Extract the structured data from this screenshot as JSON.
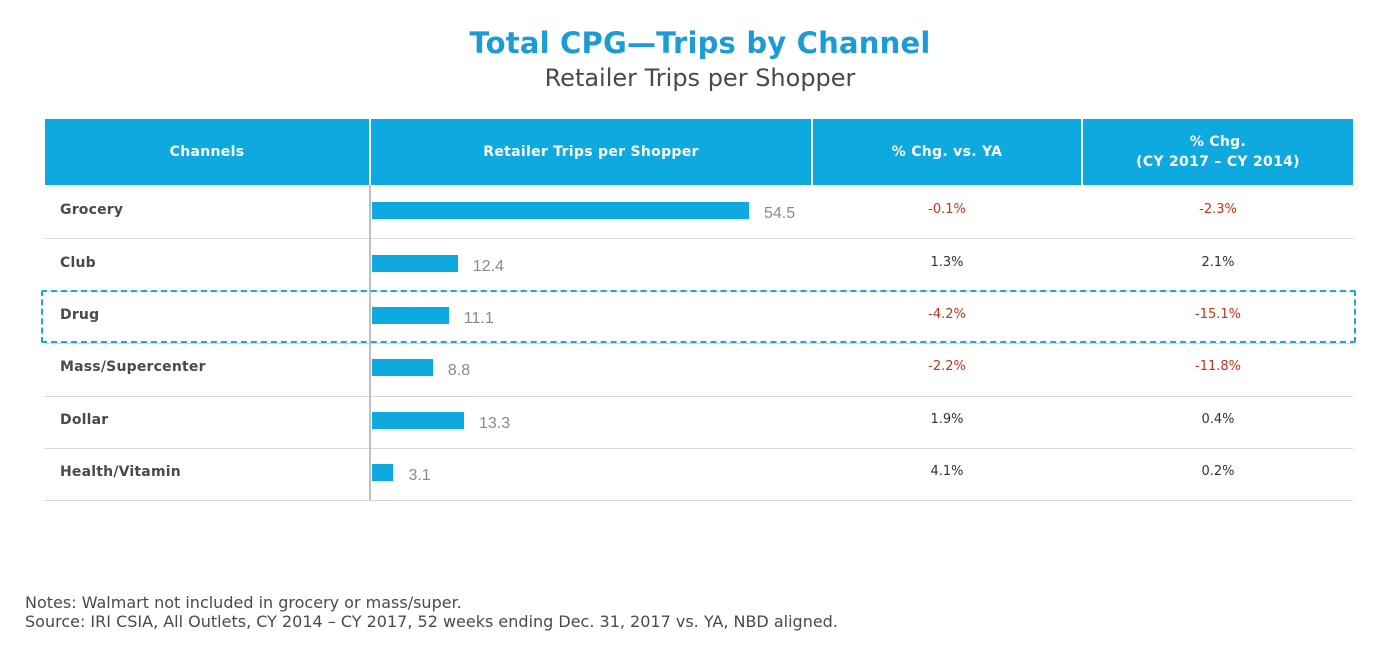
{
  "header": {
    "title": "Total CPG—Trips by Channel",
    "subtitle": "Retailer Trips per Shopper"
  },
  "table": {
    "columns": {
      "channels": "Channels",
      "trips": "Retailer Trips per Shopper",
      "chg_ya": "% Chg. vs. YA",
      "chg_cy_line1": "% Chg.",
      "chg_cy_line2": "(CY 2017 – CY 2014)"
    },
    "highlighted_row": "Drug"
  },
  "chart_data": {
    "type": "bar",
    "orientation": "horizontal",
    "title": "Total CPG—Trips by Channel",
    "subtitle": "Retailer Trips per Shopper",
    "categories": [
      "Grocery",
      "Club",
      "Drug",
      "Mass/Supercenter",
      "Dollar",
      "Health/Vitamin"
    ],
    "values": [
      54.5,
      12.4,
      11.1,
      8.8,
      13.3,
      3.1
    ],
    "value_labels": [
      "54.5",
      "12.4",
      "11.1",
      "8.8",
      "13.3",
      "3.1"
    ],
    "xlim": [
      0,
      55
    ],
    "chg_vs_ya": [
      "-0.1%",
      "1.3%",
      "-4.2%",
      "-2.2%",
      "1.9%",
      "4.1%"
    ],
    "chg_cy2017_vs_cy2014": [
      "-2.3%",
      "2.1%",
      "-15.1%",
      "-11.8%",
      "0.4%",
      "0.2%"
    ],
    "colors": {
      "bar": "#0ea9df",
      "negative": "#c0341d",
      "positive": "#333333"
    }
  },
  "notes": {
    "line1": "Notes: Walmart not included in grocery or mass/super.",
    "line2": "Source: IRI CSIA, All Outlets, CY 2014 – CY 2017, 52 weeks ending Dec. 31, 2017 vs. YA, NBD aligned."
  }
}
